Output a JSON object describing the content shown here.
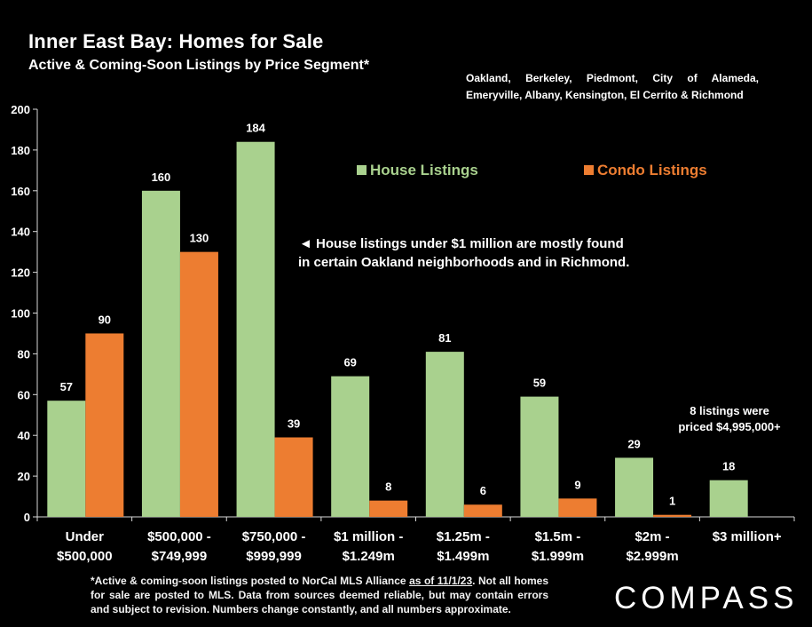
{
  "header": {
    "title": "Inner East Bay: Homes for Sale",
    "subtitle": "Active & Coming-Soon Listings by Price Segment*",
    "cities": "Oakland, Berkeley, Piedmont, City of Alameda, Emeryville, Albany, Kensington, El Cerrito & Richmond"
  },
  "chart_data": {
    "type": "bar",
    "categories": [
      [
        "Under",
        "$500,000"
      ],
      [
        "$500,000 -",
        "$749,999"
      ],
      [
        "$750,000 -",
        "$999,999"
      ],
      [
        "$1 million -",
        "$1.249m"
      ],
      [
        "$1.25m -",
        "$1.499m"
      ],
      [
        "$1.5m -",
        "$1.999m"
      ],
      [
        "$2m -",
        "$2.999m"
      ],
      [
        "$3 million+"
      ]
    ],
    "series": [
      {
        "name": "House Listings",
        "color": "#a9d18e",
        "values": [
          57,
          160,
          184,
          69,
          81,
          59,
          29,
          18
        ]
      },
      {
        "name": "Condo Listings",
        "color": "#ed7d31",
        "values": [
          90,
          130,
          39,
          8,
          6,
          9,
          1,
          null
        ]
      }
    ],
    "ylim": [
      0,
      200
    ],
    "yticks": [
      0,
      20,
      40,
      60,
      80,
      100,
      120,
      140,
      160,
      180,
      200
    ],
    "grid": false,
    "legend_position": "top-right",
    "annotations": {
      "houses_under_1m": [
        "◄ House listings under $1 million are mostly found",
        "in certain Oakland neighborhoods and in Richmond."
      ],
      "top_segment": [
        "8 listings were",
        "priced $4,995,000+"
      ]
    }
  },
  "footnote": {
    "before": "*Active & coming-soon listings posted to NorCal MLS Alliance ",
    "underlined": "as of 11/1/23",
    "after": ". Not all homes for sale are posted to MLS. Data from sources deemed reliable, but may contain errors and subject to revision. Numbers change constantly, and all numbers approximate."
  },
  "brand": {
    "name": "COMPASS"
  }
}
